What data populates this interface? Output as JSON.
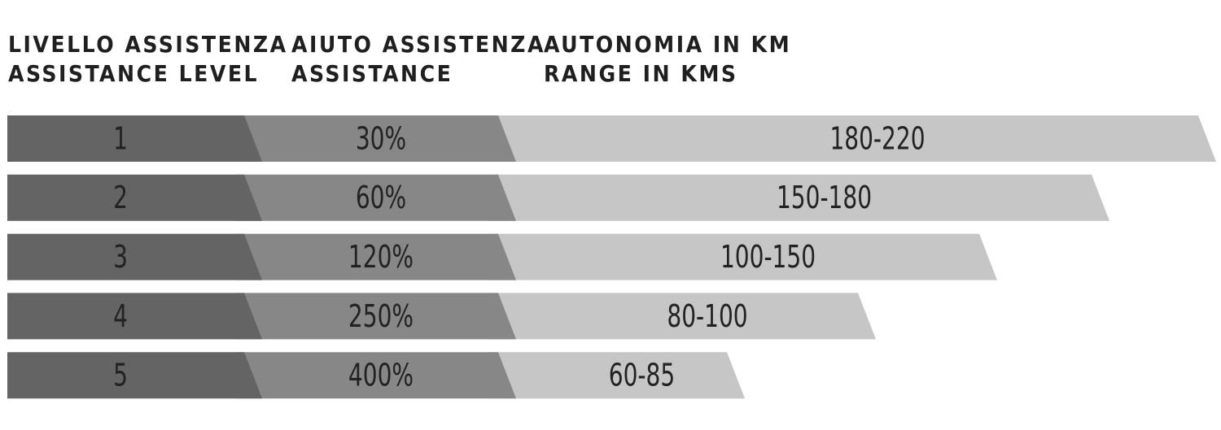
{
  "table": {
    "headers": [
      [
        "LIVELLO ASSISTENZA",
        "ASSISTANCE LEVEL"
      ],
      [
        "AIUTO ASSISTENZA",
        "ASSISTANCE"
      ],
      [
        "AUTONOMIA IN KM",
        "RANGE IN KMS"
      ]
    ],
    "rows": [
      [
        "1",
        "30%",
        "180-220"
      ],
      [
        "2",
        "60%",
        "150-180"
      ],
      [
        "3",
        "120%",
        "100-150"
      ],
      [
        "4",
        "250%",
        "80-100"
      ],
      [
        "5",
        "400%",
        "60-85"
      ]
    ]
  }
}
